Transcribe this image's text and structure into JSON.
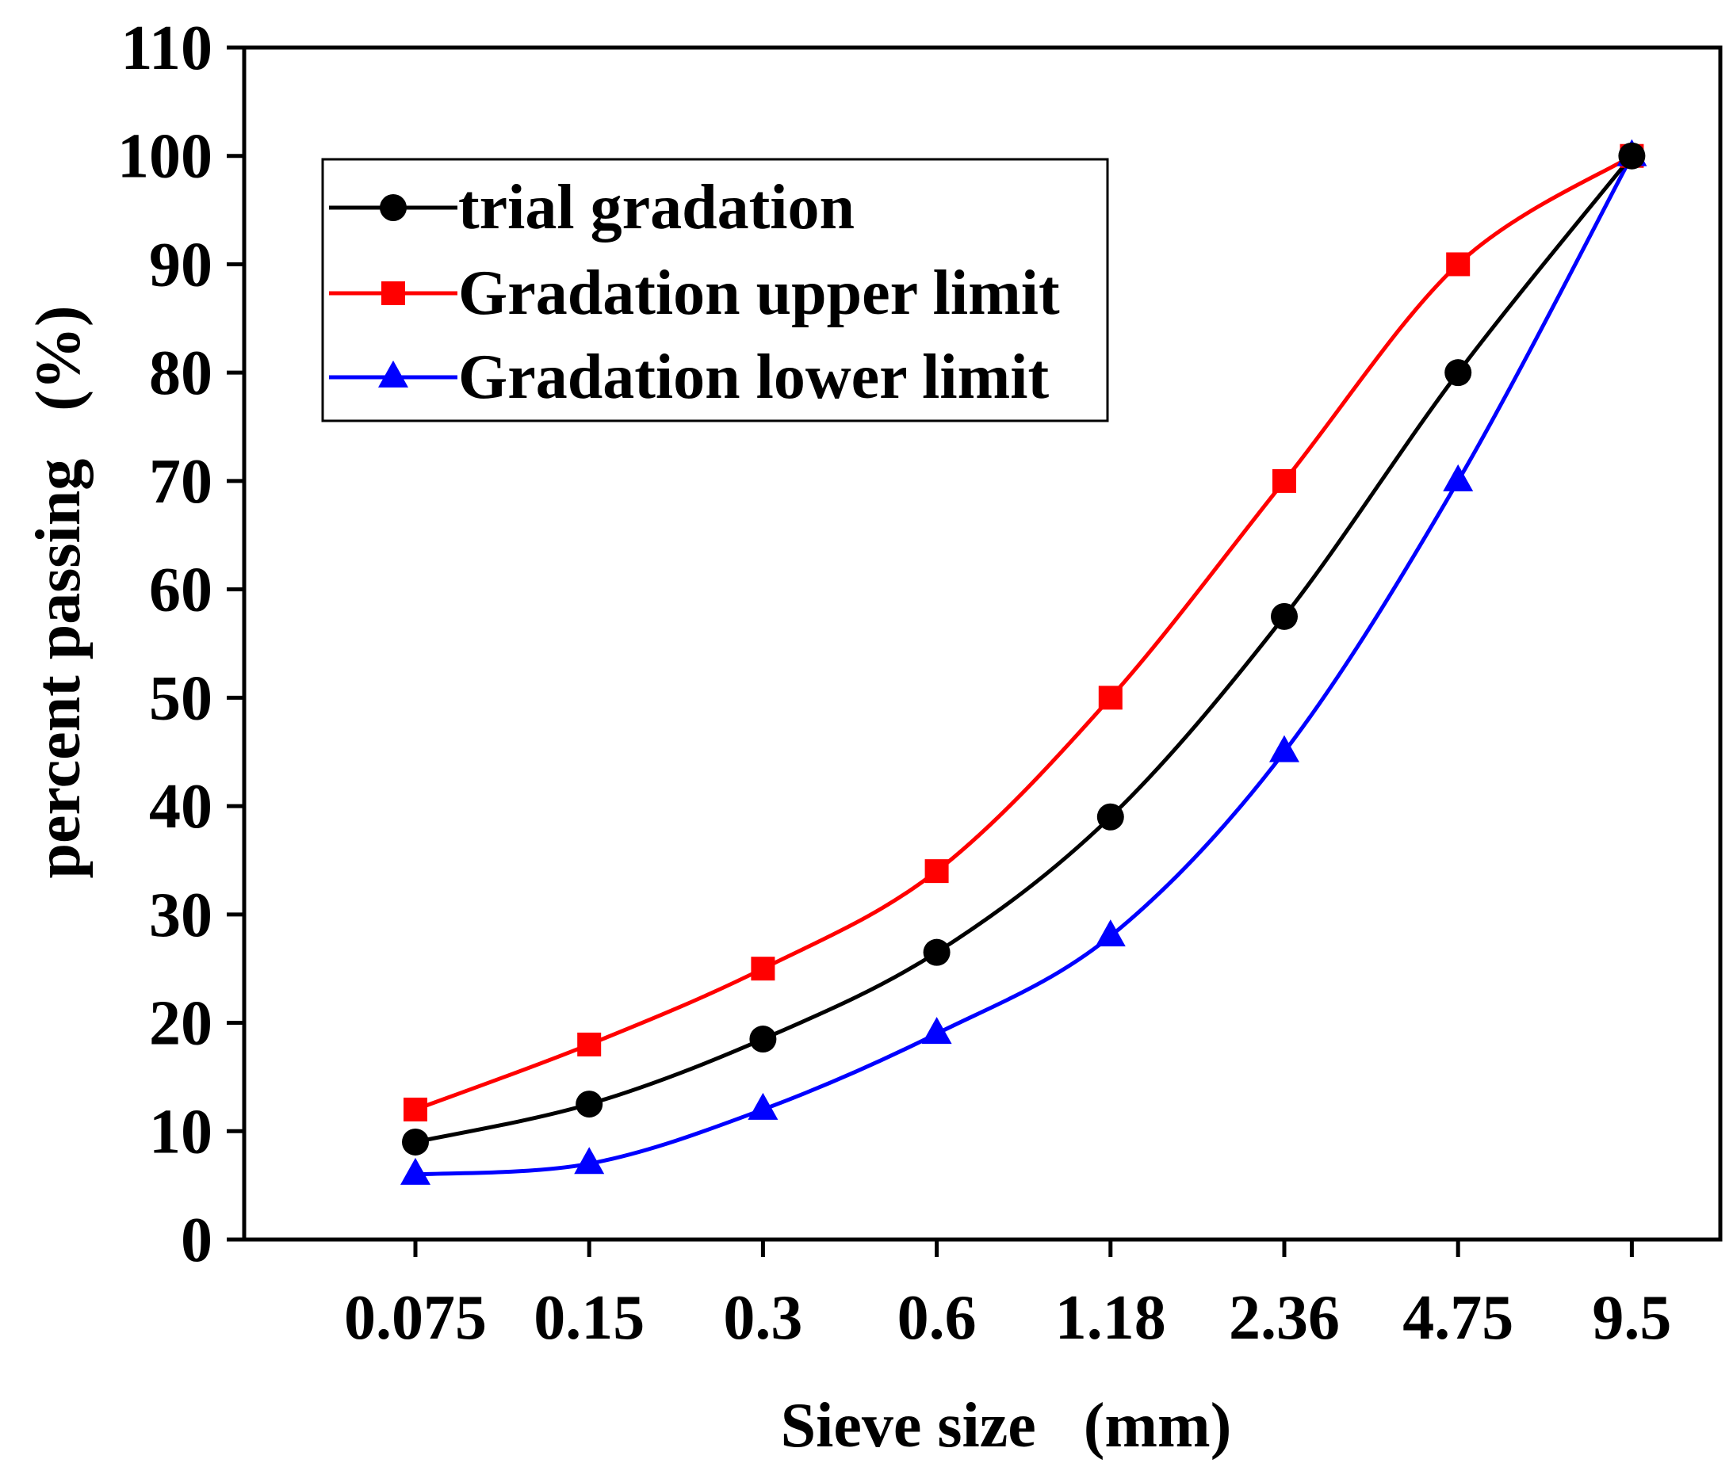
{
  "chart_data": {
    "type": "line",
    "title": "",
    "xlabel": "Sieve size   (mm)",
    "ylabel": "percent passing   (%)",
    "categories": [
      "0.075",
      "0.15",
      "0.3",
      "0.6",
      "1.18",
      "2.36",
      "4.75",
      "9.5"
    ],
    "ylim": [
      0,
      110
    ],
    "yticks": [
      "0",
      "10",
      "20",
      "30",
      "40",
      "50",
      "60",
      "70",
      "80",
      "90",
      "100",
      "110"
    ],
    "grid": false,
    "legend_position": "top-left",
    "series": [
      {
        "name": "trial gradation",
        "color": "#000000",
        "marker": "circle",
        "values": [
          9,
          12.5,
          18.5,
          26.5,
          39,
          57.5,
          80,
          100
        ]
      },
      {
        "name": "Gradation upper limit",
        "color": "#ff0000",
        "marker": "square",
        "values": [
          12,
          18,
          25,
          34,
          50,
          70,
          90,
          100
        ]
      },
      {
        "name": "Gradation lower limit",
        "color": "#0000ff",
        "marker": "triangle",
        "values": [
          6,
          7,
          12,
          19,
          28,
          45,
          70,
          100
        ]
      }
    ]
  }
}
